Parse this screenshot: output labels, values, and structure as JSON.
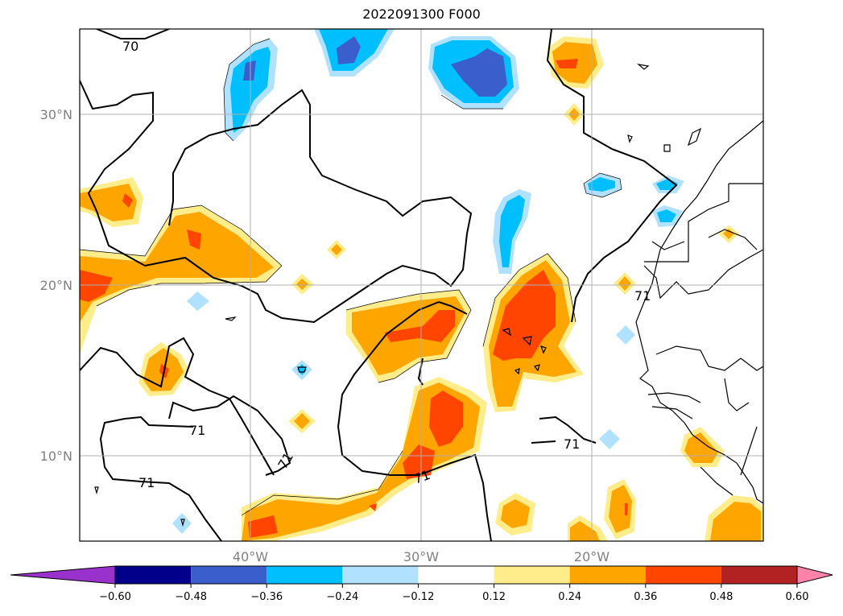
{
  "title": "2022091300 F000",
  "lat_labels": [
    "30°N",
    "20°N",
    "10°N"
  ],
  "lon_labels": [
    "40°W",
    "30°W",
    "20°W"
  ],
  "contour_labels": [
    "70",
    "71",
    "71",
    "71",
    "71",
    "71",
    "71"
  ],
  "colorbar": {
    "ticks": [
      "−0.60",
      "−0.48",
      "−0.36",
      "−0.24",
      "−0.12",
      "0.12",
      "0.24",
      "0.36",
      "0.48",
      "0.60"
    ],
    "colors": [
      "#9932cc",
      "#00008b",
      "#3a5fcd",
      "#00bfff",
      "#b0e2ff",
      "#ffffff",
      "#ffec8b",
      "#ffa500",
      "#ff4500",
      "#b22222",
      "#ff82ab"
    ]
  },
  "colors": {
    "light_yellow": "#ffec8b",
    "orange": "#ffa500",
    "orange_red": "#ff4500",
    "light_blue": "#b0e2ff",
    "sky_blue": "#00bfff",
    "royal_blue": "#3a5fcd",
    "grid": "#b0b0b0"
  }
}
